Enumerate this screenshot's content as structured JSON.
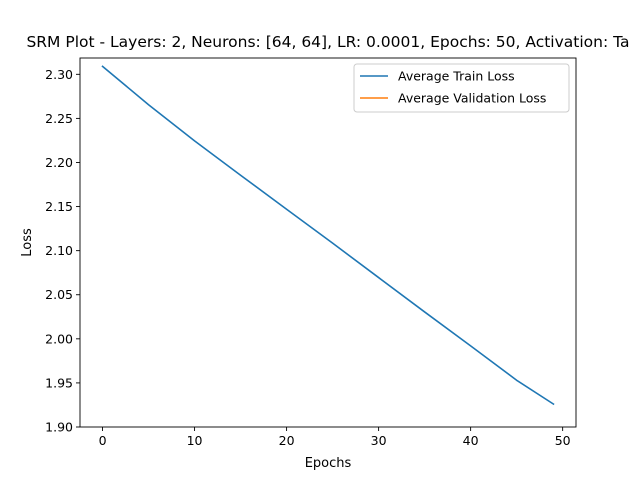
{
  "chart_data": {
    "type": "line",
    "title": "SRM Plot - Layers: 2, Neurons: [64, 64], LR: 0.0001, Epochs: 50, Activation: Ta",
    "xlabel": "Epochs",
    "ylabel": "Loss",
    "xlim": [
      -2.45,
      51.45
    ],
    "ylim": [
      1.9,
      2.3185
    ],
    "x_ticks": [
      0,
      10,
      20,
      30,
      40,
      50
    ],
    "x_tick_labels": [
      "0",
      "10",
      "20",
      "30",
      "40",
      "50"
    ],
    "y_ticks": [
      1.9,
      1.95,
      2.0,
      2.05,
      2.1,
      2.15,
      2.2,
      2.25,
      2.3
    ],
    "y_tick_labels": [
      "1.90",
      "1.95",
      "2.00",
      "2.05",
      "2.10",
      "2.15",
      "2.20",
      "2.25",
      "2.30"
    ],
    "grid": false,
    "legend_position": "top-right",
    "series": [
      {
        "name": "Average Train Loss",
        "color": "#1f77b4",
        "x": [
          0,
          5,
          10,
          15,
          20,
          25,
          30,
          35,
          40,
          45,
          49
        ],
        "y": [
          2.309,
          2.2655,
          2.2245,
          2.1855,
          2.147,
          2.1085,
          2.0695,
          2.0305,
          1.992,
          1.953,
          1.926
        ]
      },
      {
        "name": "Average Validation Loss",
        "color": "#ff7f0e",
        "x": [],
        "y": []
      }
    ]
  }
}
